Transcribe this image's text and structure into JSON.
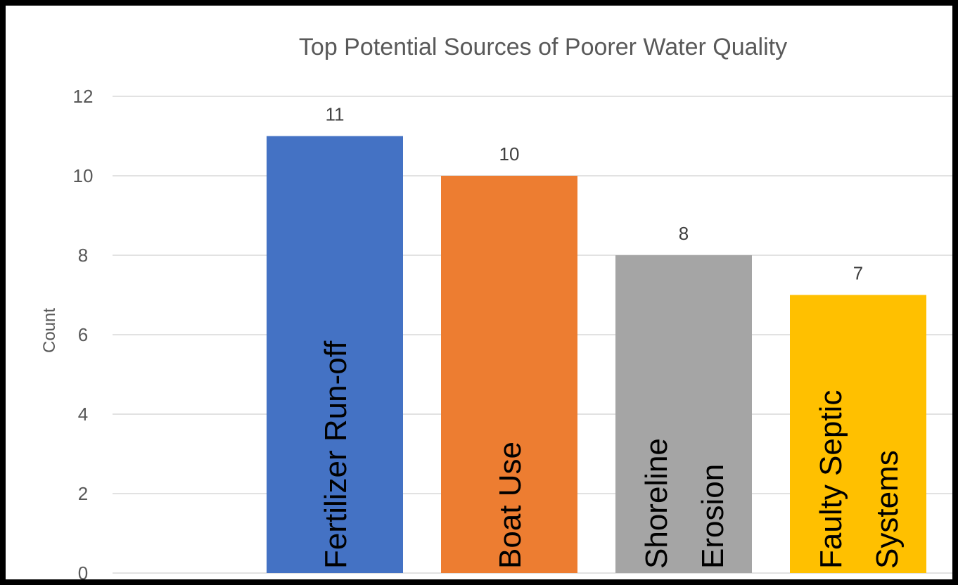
{
  "chart_data": {
    "type": "bar",
    "title": "Top Potential Sources of Poorer Water Quality",
    "ylabel": "Count",
    "xlabel": "",
    "ylim": [
      0,
      12
    ],
    "yticks": [
      0,
      2,
      4,
      6,
      8,
      10,
      12
    ],
    "grid": true,
    "legend": "none",
    "categories": [
      [
        "Fertilizer Run-off"
      ],
      [
        "Boat Use"
      ],
      [
        "Shoreline",
        "Erosion"
      ],
      [
        "Faulty Septic",
        "Systems"
      ]
    ],
    "values": [
      11,
      10,
      8,
      7
    ],
    "colors": [
      "#4472C4",
      "#ED7D31",
      "#A5A5A5",
      "#FFC000"
    ],
    "data_labels": [
      "11",
      "10",
      "8",
      "7"
    ]
  }
}
